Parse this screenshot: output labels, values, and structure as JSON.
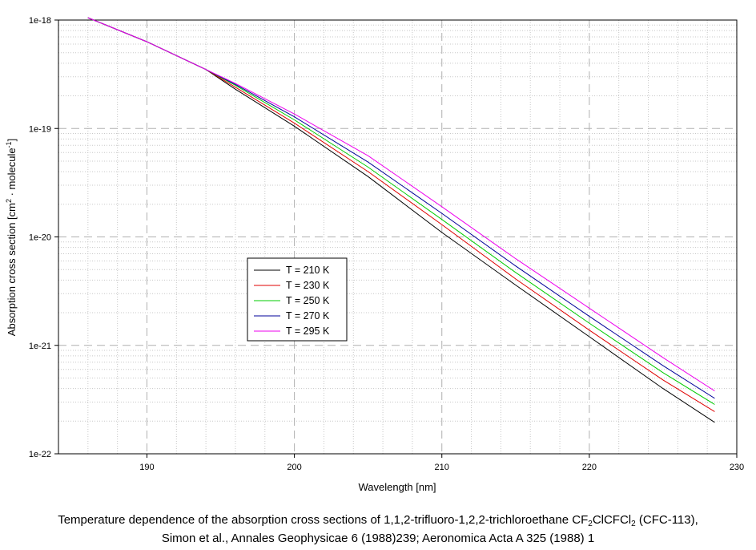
{
  "chart_data": {
    "type": "line",
    "xlabel": "Wavelength [nm]",
    "ylabel_parts": [
      "Absorption cross section [cm",
      "2",
      " · molecule",
      "-1",
      "]"
    ],
    "xlim": [
      184,
      230
    ],
    "ylim": [
      1e-22,
      1e-18
    ],
    "yscale": "log",
    "x_ticks": [
      190,
      200,
      210,
      220,
      230
    ],
    "x_tick_labels": [
      "190",
      "200",
      "210",
      "220",
      "230"
    ],
    "y_ticks": [
      1e-22,
      1e-21,
      1e-20,
      1e-19,
      1e-18
    ],
    "y_tick_labels": [
      "1e-22",
      "1e-21",
      "1e-20",
      "1e-19",
      "1e-18"
    ],
    "grid": true,
    "legend_position": "center-left",
    "series": [
      {
        "name": "T = 210 K",
        "color": "#000000",
        "x": [
          186,
          190,
          194,
          196,
          200,
          205,
          210,
          215,
          220,
          225,
          228.5
        ],
        "y": [
          1.05e-18,
          6.3e-19,
          3.5e-19,
          2.3e-19,
          1.05e-19,
          3.6e-20,
          1.1e-20,
          3.6e-21,
          1.2e-21,
          4e-22,
          1.95e-22
        ]
      },
      {
        "name": "T = 230 K",
        "color": "#e00000",
        "x": [
          186,
          190,
          194,
          196,
          200,
          205,
          210,
          215,
          220,
          225,
          228.5
        ],
        "y": [
          1.05e-18,
          6.3e-19,
          3.5e-19,
          2.4e-19,
          1.12e-19,
          4e-20,
          1.3e-20,
          4.1e-21,
          1.38e-21,
          4.8e-22,
          2.45e-22
        ]
      },
      {
        "name": "T = 250 K",
        "color": "#00cc00",
        "x": [
          186,
          190,
          194,
          196,
          200,
          205,
          210,
          215,
          220,
          225,
          228.5
        ],
        "y": [
          1.05e-18,
          6.3e-19,
          3.5e-19,
          2.5e-19,
          1.2e-19,
          4.4e-20,
          1.45e-20,
          4.7e-21,
          1.6e-21,
          5.6e-22,
          2.85e-22
        ]
      },
      {
        "name": "T = 270 K",
        "color": "#000099",
        "x": [
          186,
          190,
          194,
          196,
          200,
          205,
          210,
          215,
          220,
          225,
          228.5
        ],
        "y": [
          1.05e-18,
          6.3e-19,
          3.5e-19,
          2.55e-19,
          1.28e-19,
          4.9e-20,
          1.65e-20,
          5.4e-21,
          1.85e-21,
          6.5e-22,
          3.25e-22
        ]
      },
      {
        "name": "T = 295 K",
        "color": "#ee00ee",
        "x": [
          186,
          190,
          194,
          196,
          200,
          205,
          210,
          215,
          220,
          225,
          228.5
        ],
        "y": [
          1.05e-18,
          6.3e-19,
          3.5e-19,
          2.6e-19,
          1.36e-19,
          5.6e-20,
          1.9e-20,
          6.3e-21,
          2.2e-21,
          7.7e-22,
          3.8e-22
        ]
      }
    ]
  },
  "caption": {
    "line1_a": "Temperature dependence of the absorption cross sections of 1,1,2-trifluoro-1,2,2-trichloroethane CF",
    "line1_sub1": "2",
    "line1_b": "ClCFCl",
    "line1_sub2": "2",
    "line1_c": " (CFC-113),",
    "line2": "Simon et al., Annales Geophysicae 6 (1988)239;  Aeronomica Acta A 325 (1988) 1"
  }
}
